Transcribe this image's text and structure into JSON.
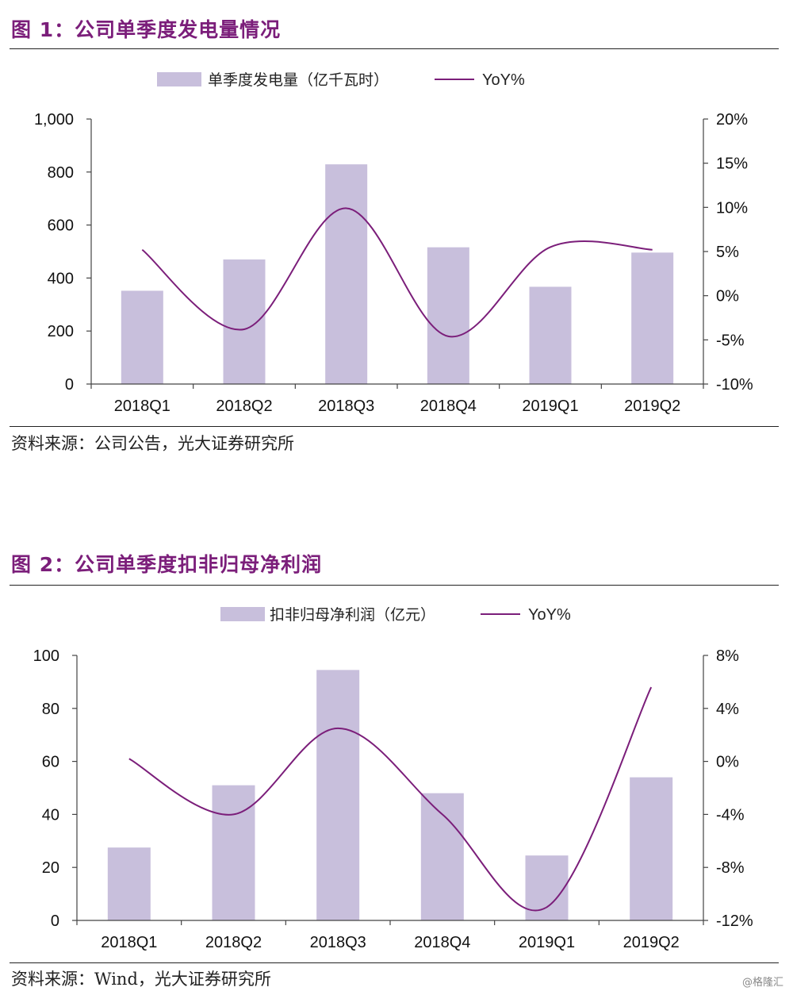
{
  "figures": [
    {
      "title": "图 1：公司单季度发电量情况",
      "source": "资料来源：公司公告，光大证券研究所",
      "chart_data": {
        "type": "bar+line",
        "categories": [
          "2018Q1",
          "2018Q2",
          "2018Q3",
          "2018Q4",
          "2019Q1",
          "2019Q2"
        ],
        "series": [
          {
            "name": "单季度发电量（亿千瓦时）",
            "type": "bar",
            "axis": "left",
            "values": [
              352,
              470,
              829,
              516,
              367,
              496
            ]
          },
          {
            "name": "YoY%",
            "type": "line",
            "axis": "right",
            "values": [
              5.2,
              -3.8,
              9.9,
              -4.6,
              5.5,
              5.2
            ]
          }
        ],
        "left_axis": {
          "min": 0,
          "max": 1000,
          "step": 200,
          "tick_labels": [
            "0",
            "200",
            "400",
            "600",
            "800",
            "1,000"
          ]
        },
        "right_axis": {
          "min": -10,
          "max": 20,
          "step": 5,
          "tick_labels": [
            "-10%",
            "-5%",
            "0%",
            "5%",
            "10%",
            "15%",
            "20%"
          ]
        },
        "legend_position": "top-center",
        "colors": {
          "bar": "#c8bfdc",
          "line": "#7b1e7a"
        }
      }
    },
    {
      "title": "图 2：公司单季度扣非归母净利润",
      "source": "资料来源：Wind，光大证券研究所",
      "chart_data": {
        "type": "bar+line",
        "categories": [
          "2018Q1",
          "2018Q2",
          "2018Q3",
          "2018Q4",
          "2019Q1",
          "2019Q2"
        ],
        "series": [
          {
            "name": "扣非归母净利润（亿元）",
            "type": "bar",
            "axis": "left",
            "values": [
              27.5,
              51,
              94.5,
              48,
              24.5,
              54
            ]
          },
          {
            "name": "YoY%",
            "type": "line",
            "axis": "right",
            "values": [
              0.2,
              -4,
              2.5,
              -4,
              -11,
              5.6
            ]
          }
        ],
        "left_axis": {
          "min": 0,
          "max": 100,
          "step": 20,
          "tick_labels": [
            "0",
            "20",
            "40",
            "60",
            "80",
            "100"
          ]
        },
        "right_axis": {
          "min": -12,
          "max": 8,
          "step": 4,
          "tick_labels": [
            "-12%",
            "-8%",
            "-4%",
            "0%",
            "4%",
            "8%"
          ]
        },
        "legend_position": "top-center",
        "colors": {
          "bar": "#c8bfdc",
          "line": "#7b1e7a"
        }
      }
    }
  ],
  "watermark": "@格隆汇"
}
